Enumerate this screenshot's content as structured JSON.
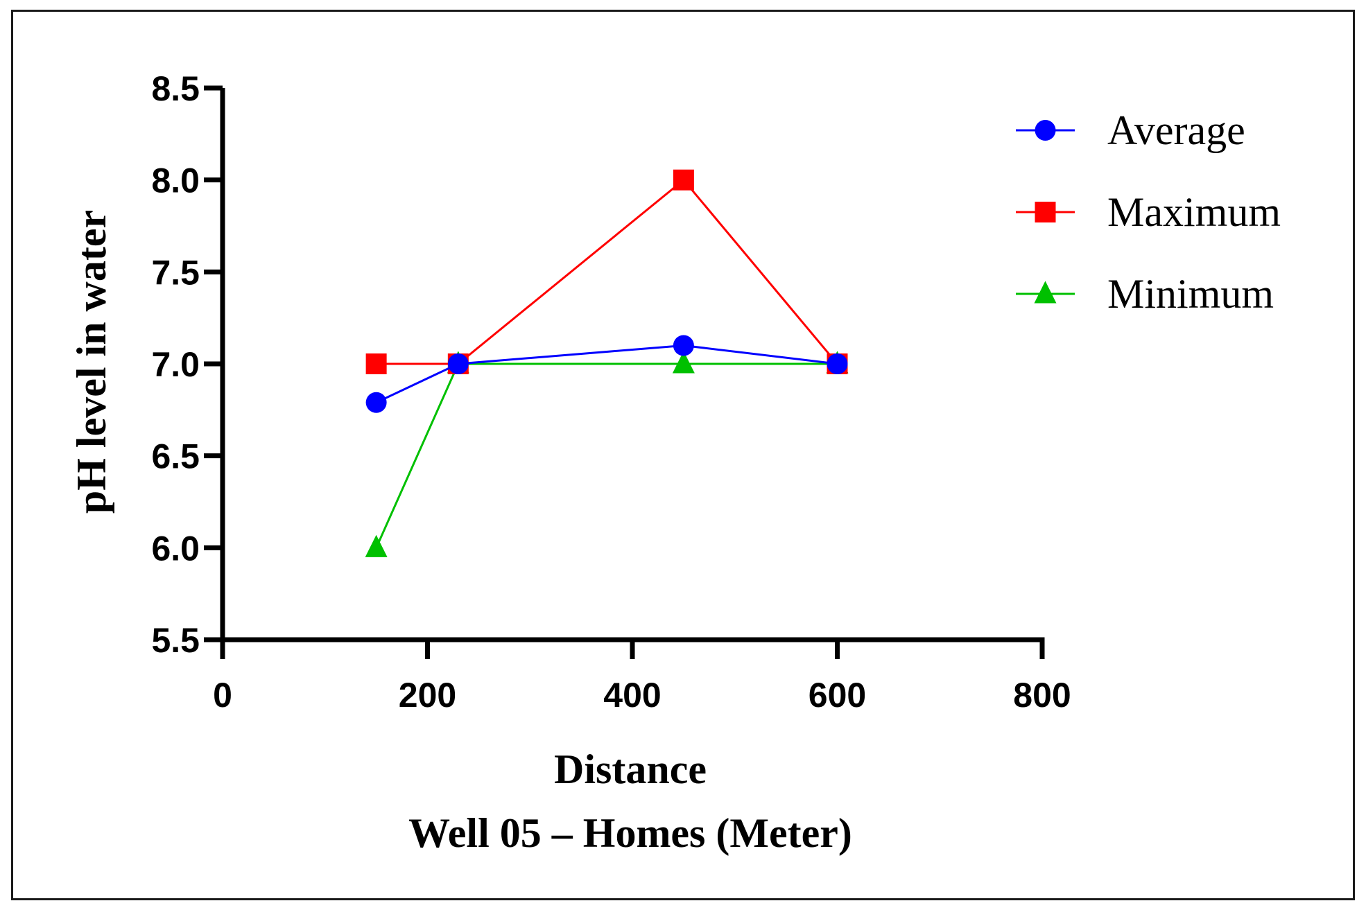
{
  "chart_data": {
    "type": "line",
    "title": "",
    "xlabel": "Distance",
    "xlabel2": "Well 05 – Homes (Meter)",
    "ylabel": "pH level in water",
    "xlim": [
      0,
      800
    ],
    "ylim": [
      5.5,
      8.5
    ],
    "x_ticks": [
      0,
      200,
      400,
      600,
      800
    ],
    "x_tick_labels": [
      "0",
      "200",
      "400",
      "600",
      "800"
    ],
    "y_ticks": [
      5.5,
      6.0,
      6.5,
      7.0,
      7.5,
      8.0,
      8.5
    ],
    "y_tick_labels": [
      "5.5",
      "6.0",
      "6.5",
      "7.0",
      "7.5",
      "8.0",
      "8.5"
    ],
    "grid": false,
    "legend_position": "top-right",
    "x": [
      150,
      230,
      450,
      600
    ],
    "series": [
      {
        "name": "Average",
        "marker": "circle",
        "color": "#0000ff",
        "values": [
          6.79,
          7.0,
          7.1,
          7.0
        ]
      },
      {
        "name": "Maximum",
        "marker": "square",
        "color": "#ff0000",
        "values": [
          7.0,
          7.0,
          8.0,
          7.0
        ]
      },
      {
        "name": "Minimum",
        "marker": "triangle",
        "color": "#00c000",
        "values": [
          6.0,
          7.0,
          7.0,
          7.0
        ]
      }
    ]
  }
}
